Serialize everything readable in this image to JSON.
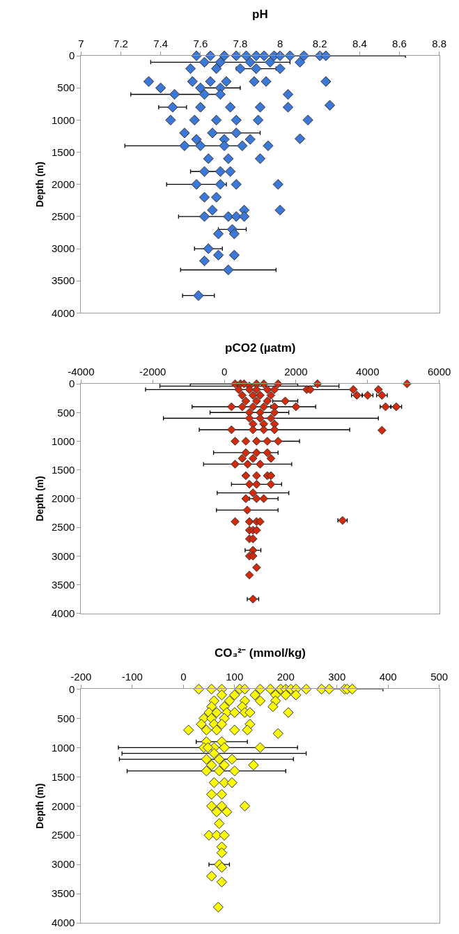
{
  "chart_data": [
    {
      "type": "scatter",
      "title": "pH",
      "ylabel": "Depth (m)",
      "color": "#3b78d8",
      "marker": "diamond",
      "xlim": [
        7,
        8.8
      ],
      "xticks": [
        7,
        7.2,
        7.4,
        7.6,
        7.8,
        8,
        8.2,
        8.4,
        8.6,
        8.8
      ],
      "ylim": [
        4000,
        0
      ],
      "yticks": [
        0,
        500,
        1000,
        1500,
        2000,
        2500,
        3000,
        3500,
        4000
      ],
      "x": [
        7.58,
        7.65,
        7.72,
        7.78,
        7.83,
        7.88,
        7.92,
        7.97,
        8.0,
        8.05,
        8.12,
        8.2,
        8.23,
        7.7,
        7.62,
        7.85,
        7.95,
        8.1,
        7.55,
        7.68,
        7.8,
        7.88,
        8.0,
        7.34,
        7.56,
        7.65,
        7.73,
        7.87,
        7.93,
        8.23,
        7.4,
        7.6,
        7.7,
        7.47,
        7.62,
        7.7,
        8.04,
        7.46,
        7.6,
        7.75,
        7.9,
        8.04,
        8.25,
        7.45,
        7.57,
        7.68,
        7.78,
        7.89,
        8.14,
        7.52,
        7.66,
        7.78,
        7.58,
        7.72,
        7.85,
        8.1,
        7.52,
        7.6,
        7.72,
        7.81,
        7.94,
        7.64,
        7.74,
        7.9,
        7.62,
        7.7,
        7.75,
        7.58,
        7.7,
        7.78,
        7.99,
        7.62,
        7.68,
        7.66,
        7.82,
        8.0,
        7.62,
        7.74,
        7.78,
        7.82,
        7.76,
        7.69,
        7.77,
        7.64,
        7.69,
        7.77,
        7.62,
        7.74,
        7.59
      ],
      "values": [
        0,
        0,
        0,
        0,
        0,
        0,
        0,
        0,
        0,
        0,
        0,
        0,
        0,
        100,
        100,
        100,
        100,
        100,
        200,
        200,
        200,
        200,
        200,
        400,
        400,
        400,
        400,
        400,
        400,
        400,
        500,
        500,
        500,
        600,
        600,
        600,
        600,
        800,
        800,
        800,
        800,
        800,
        770,
        1000,
        1000,
        1000,
        1000,
        1000,
        1000,
        1200,
        1200,
        1200,
        1300,
        1300,
        1300,
        1290,
        1400,
        1400,
        1400,
        1400,
        1400,
        1600,
        1600,
        1600,
        1800,
        1800,
        1800,
        2000,
        2000,
        2000,
        2000,
        2200,
        2200,
        2400,
        2400,
        2400,
        2500,
        2500,
        2500,
        2500,
        2700,
        2770,
        2770,
        3000,
        3100,
        3100,
        3190,
        3330,
        3730
      ],
      "xerrors": [
        null,
        null,
        null,
        null,
        null,
        null,
        null,
        null,
        null,
        null,
        null,
        0.43,
        null,
        0.35,
        null,
        null,
        null,
        null,
        null,
        null,
        null,
        0.1,
        null,
        null,
        null,
        null,
        null,
        null,
        null,
        null,
        null,
        null,
        0.1,
        0.22,
        null,
        null,
        null,
        0.07,
        null,
        null,
        null,
        null,
        null,
        null,
        null,
        null,
        null,
        null,
        null,
        null,
        null,
        0.12,
        null,
        null,
        null,
        null,
        0.3,
        null,
        null,
        null,
        null,
        null,
        null,
        null,
        0.07,
        null,
        null,
        0.15,
        null,
        null,
        null,
        null,
        null,
        null,
        null,
        null,
        0.13,
        null,
        null,
        null,
        0.07,
        null,
        null,
        0.07,
        null,
        null,
        null,
        0.24,
        0.08
      ]
    },
    {
      "type": "scatter",
      "title": "pCO2 (µatm)",
      "ylabel": "Depth (m)",
      "color": "#d42a0c",
      "marker": "diamond",
      "xlim": [
        -4000,
        6000
      ],
      "xticks": [
        -4000,
        -2000,
        0,
        2000,
        4000,
        6000
      ],
      "ylim": [
        4000,
        0
      ],
      "yticks": [
        0,
        500,
        1000,
        1500,
        2000,
        2500,
        3000,
        3500,
        4000
      ],
      "x": [
        300,
        450,
        550,
        700,
        900,
        1100,
        1500,
        2600,
        5100,
        400,
        700,
        900,
        1200,
        1400,
        2300,
        2400,
        3600,
        4300,
        500,
        800,
        1000,
        1300,
        3700,
        4000,
        4400,
        600,
        900,
        1200,
        1700,
        200,
        500,
        800,
        1100,
        1400,
        2000,
        4500,
        4800,
        700,
        1000,
        1400,
        1300,
        700,
        1000,
        800,
        1100,
        1400,
        200,
        1400,
        800,
        1100,
        4400,
        300,
        600,
        900,
        1200,
        1500,
        600,
        900,
        1200,
        500,
        800,
        1300,
        300,
        650,
        1000,
        600,
        900,
        1200,
        1300,
        700,
        900,
        1300,
        800,
        600,
        900,
        1100,
        640,
        300,
        700,
        900,
        1000,
        3300,
        700,
        800,
        900,
        700,
        800,
        800,
        700,
        800,
        900,
        700,
        800
      ],
      "values": [
        0,
        0,
        0,
        40,
        0,
        0,
        0,
        0,
        0,
        100,
        100,
        100,
        100,
        100,
        100,
        100,
        100,
        100,
        200,
        200,
        200,
        200,
        200,
        200,
        200,
        300,
        300,
        300,
        300,
        400,
        400,
        400,
        400,
        400,
        400,
        400,
        400,
        500,
        500,
        500,
        600,
        600,
        600,
        700,
        700,
        700,
        800,
        800,
        800,
        800,
        810,
        1000,
        1000,
        1000,
        1000,
        1000,
        1200,
        1200,
        1200,
        1300,
        1300,
        1300,
        1400,
        1400,
        1400,
        1600,
        1600,
        1600,
        1600,
        1750,
        1750,
        1750,
        1900,
        2000,
        2000,
        2000,
        2200,
        2400,
        2400,
        2400,
        2400,
        2380,
        2550,
        2550,
        2550,
        2700,
        2700,
        2900,
        3000,
        3000,
        3200,
        3330,
        3750
      ],
      "xerrors": [
        null,
        null,
        1500,
        2500,
        null,
        null,
        null,
        null,
        null,
        null,
        2900,
        null,
        null,
        null,
        null,
        null,
        null,
        null,
        null,
        null,
        null,
        null,
        150,
        150,
        150,
        null,
        null,
        null,
        350,
        1100,
        null,
        null,
        null,
        null,
        550,
        150,
        150,
        1100,
        null,
        null,
        3000,
        null,
        null,
        null,
        null,
        null,
        null,
        2100,
        null,
        null,
        null,
        null,
        null,
        null,
        null,
        600,
        900,
        null,
        null,
        null,
        null,
        null,
        null,
        1230,
        null,
        null,
        null,
        null,
        null,
        null,
        700,
        null,
        1000,
        null,
        null,
        400,
        860,
        null,
        null,
        null,
        null,
        130,
        null,
        null,
        null,
        null,
        null,
        220,
        null,
        null,
        null,
        null,
        160
      ]
    },
    {
      "type": "scatter",
      "title": "CO₃²⁻ (mmol/kg)",
      "ylabel": "Depth (m)",
      "color": "#ffff00",
      "marker": "diamond",
      "xlim": [
        -200,
        500
      ],
      "xticks": [
        -200,
        -100,
        0,
        100,
        200,
        300,
        400,
        500
      ],
      "ylim": [
        4000,
        0
      ],
      "yticks": [
        0,
        500,
        1000,
        1500,
        2000,
        2500,
        3000,
        3500,
        4000
      ],
      "x": [
        30,
        55,
        75,
        110,
        120,
        150,
        170,
        190,
        200,
        210,
        220,
        240,
        270,
        285,
        315,
        320,
        330,
        75,
        100,
        140,
        180,
        200,
        220,
        60,
        90,
        120,
        150,
        180,
        55,
        80,
        115,
        175,
        50,
        65,
        85,
        100,
        120,
        130,
        205,
        40,
        55,
        80,
        35,
        60,
        75,
        130,
        10,
        45,
        65,
        100,
        125,
        185,
        45,
        75,
        40,
        60,
        80,
        150,
        48,
        60,
        45,
        70,
        95,
        55,
        80,
        137,
        45,
        70,
        100,
        60,
        80,
        95,
        55,
        75,
        55,
        75,
        120,
        65,
        85,
        70,
        50,
        65,
        80,
        75,
        75,
        70,
        75,
        55,
        75,
        68
      ],
      "values": [
        0,
        0,
        0,
        0,
        0,
        0,
        0,
        0,
        0,
        0,
        0,
        0,
        0,
        0,
        0,
        0,
        0,
        100,
        100,
        100,
        100,
        100,
        100,
        200,
        200,
        200,
        200,
        200,
        300,
        300,
        300,
        300,
        400,
        400,
        400,
        400,
        400,
        400,
        400,
        500,
        500,
        500,
        600,
        600,
        600,
        600,
        700,
        700,
        700,
        700,
        700,
        760,
        900,
        900,
        1000,
        1000,
        1000,
        1000,
        1000,
        1100,
        1200,
        1200,
        1200,
        1300,
        1300,
        1300,
        1400,
        1400,
        1400,
        1600,
        1600,
        1600,
        1800,
        1800,
        2000,
        2000,
        2000,
        2100,
        2100,
        2300,
        2500,
        2500,
        2500,
        2700,
        2800,
        3000,
        3050,
        3200,
        3300,
        3730
      ],
      "xerrors": [
        null,
        null,
        null,
        null,
        null,
        null,
        null,
        null,
        null,
        null,
        null,
        null,
        null,
        null,
        null,
        null,
        60,
        null,
        null,
        null,
        null,
        null,
        null,
        null,
        null,
        null,
        null,
        null,
        null,
        null,
        null,
        null,
        null,
        null,
        null,
        null,
        null,
        null,
        null,
        null,
        null,
        null,
        null,
        null,
        null,
        null,
        null,
        null,
        null,
        null,
        null,
        null,
        null,
        50,
        null,
        null,
        null,
        null,
        175,
        180,
        170,
        null,
        null,
        null,
        null,
        null,
        155,
        null,
        null,
        null,
        null,
        null,
        null,
        null,
        null,
        null,
        null,
        null,
        null,
        null,
        null,
        null,
        null,
        null,
        null,
        20,
        null,
        null,
        null,
        null
      ]
    }
  ]
}
